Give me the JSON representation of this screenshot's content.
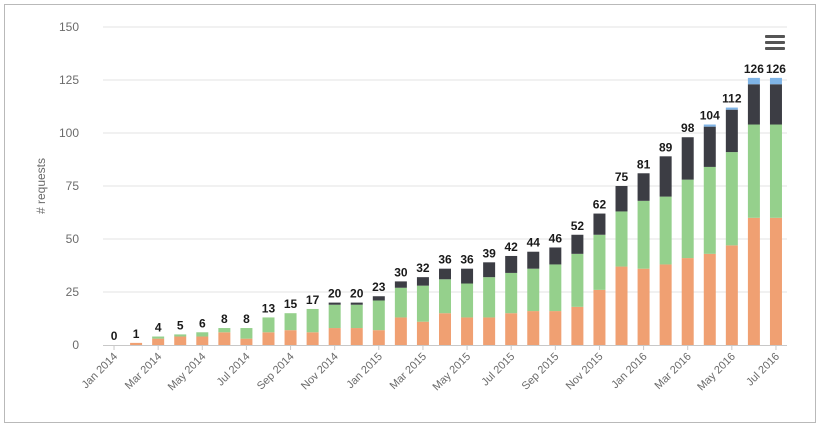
{
  "chart_data": {
    "type": "bar",
    "stacked": true,
    "ylabel": "# requests",
    "xlabel": "",
    "ylim": [
      0,
      150
    ],
    "yticks": [
      0,
      25,
      50,
      75,
      100,
      125,
      150
    ],
    "grid": true,
    "categories": [
      "Jan 2014",
      "Feb 2014",
      "Mar 2014",
      "Apr 2014",
      "May 2014",
      "Jun 2014",
      "Jul 2014",
      "Aug 2014",
      "Sep 2014",
      "Oct 2014",
      "Nov 2014",
      "Dec 2014",
      "Jan 2015",
      "Feb 2015",
      "Mar 2015",
      "Apr 2015",
      "May 2015",
      "Jun 2015",
      "Jul 2015",
      "Aug 2015",
      "Sep 2015",
      "Oct 2015",
      "Nov 2015",
      "Dec 2015",
      "Jan 2016",
      "Feb 2016",
      "Mar 2016",
      "Apr 2016",
      "May 2016",
      "Jun 2016",
      "Jul 2016"
    ],
    "xtick_labels": [
      "Jan 2014",
      "Mar 2014",
      "May 2014",
      "Jul 2014",
      "Sep 2014",
      "Nov 2014",
      "Jan 2015",
      "Mar 2015",
      "May 2015",
      "Jul 2015",
      "Sep 2015",
      "Nov 2015",
      "Jan 2016",
      "Mar 2016",
      "May 2016",
      "Jul 2016"
    ],
    "totals": [
      0,
      1,
      4,
      5,
      6,
      8,
      8,
      13,
      15,
      17,
      20,
      20,
      23,
      30,
      32,
      36,
      36,
      39,
      42,
      44,
      46,
      52,
      62,
      75,
      81,
      89,
      98,
      104,
      112,
      126,
      126
    ],
    "series": [
      {
        "color": "#f0a072",
        "values": [
          0,
          1,
          3,
          4,
          4,
          6,
          3,
          6,
          7,
          6,
          8,
          8,
          7,
          13,
          11,
          15,
          13,
          13,
          15,
          16,
          16,
          18,
          26,
          37,
          36,
          38,
          41,
          43,
          47,
          60,
          60
        ]
      },
      {
        "color": "#95d08c",
        "values": [
          0,
          0,
          1,
          1,
          2,
          2,
          5,
          7,
          8,
          11,
          11,
          11,
          14,
          14,
          17,
          16,
          16,
          19,
          19,
          20,
          22,
          25,
          26,
          26,
          32,
          32,
          37,
          41,
          44,
          44,
          44
        ]
      },
      {
        "color": "#3c3d44",
        "values": [
          0,
          0,
          0,
          0,
          0,
          0,
          0,
          0,
          0,
          0,
          1,
          1,
          2,
          3,
          4,
          5,
          7,
          7,
          8,
          8,
          8,
          9,
          10,
          12,
          13,
          19,
          20,
          19,
          20,
          19,
          19
        ]
      },
      {
        "color": "#7fb4e6",
        "values": [
          0,
          0,
          0,
          0,
          0,
          0,
          0,
          0,
          0,
          0,
          0,
          0,
          0,
          0,
          0,
          0,
          0,
          0,
          0,
          0,
          0,
          0,
          0,
          0,
          0,
          0,
          0,
          1,
          1,
          3,
          3
        ]
      }
    ]
  },
  "ui": {
    "menu_icon": "hamburger-menu-icon"
  }
}
